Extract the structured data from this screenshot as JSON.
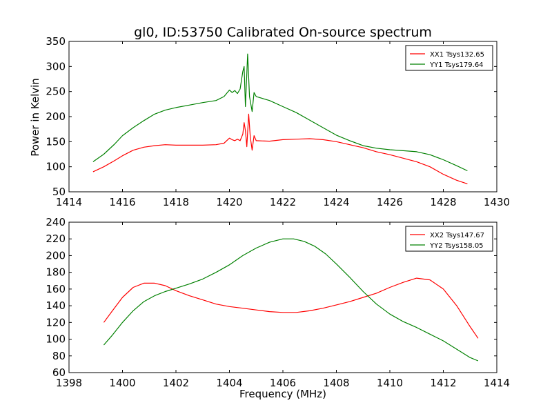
{
  "figure": {
    "title": "gl0, ID:53750 Calibrated On-source spectrum",
    "xlabel": "Frequency (MHz)",
    "ylabel_top": "Power in Kelvin"
  },
  "chart_data": [
    {
      "type": "line",
      "title": "gl0, ID:53750 Calibrated On-source spectrum",
      "xlabel": "",
      "ylabel": "Power in Kelvin",
      "xlim": [
        1414,
        1430
      ],
      "ylim": [
        50,
        350
      ],
      "xticks": [
        1414,
        1416,
        1418,
        1420,
        1422,
        1424,
        1426,
        1428,
        1430
      ],
      "yticks": [
        50,
        100,
        150,
        200,
        250,
        300,
        350
      ],
      "legend_position": "top-right",
      "grid": false,
      "series": [
        {
          "name": "XX1 Tsys132.65",
          "color": "#ff0000",
          "points": [
            [
              1414.9,
              90
            ],
            [
              1415.3,
              100
            ],
            [
              1415.7,
              112
            ],
            [
              1416.0,
              122
            ],
            [
              1416.4,
              133
            ],
            [
              1416.8,
              139
            ],
            [
              1417.2,
              142
            ],
            [
              1417.6,
              144
            ],
            [
              1418.0,
              143
            ],
            [
              1418.5,
              143
            ],
            [
              1419.0,
              143
            ],
            [
              1419.5,
              144
            ],
            [
              1419.8,
              147
            ],
            [
              1420.0,
              157
            ],
            [
              1420.1,
              154
            ],
            [
              1420.2,
              152
            ],
            [
              1420.3,
              155
            ],
            [
              1420.4,
              152
            ],
            [
              1420.5,
              165
            ],
            [
              1420.55,
              188
            ],
            [
              1420.6,
              172
            ],
            [
              1420.65,
              140
            ],
            [
              1420.72,
              205
            ],
            [
              1420.78,
              160
            ],
            [
              1420.85,
              133
            ],
            [
              1420.92,
              162
            ],
            [
              1421.0,
              152
            ],
            [
              1421.5,
              151
            ],
            [
              1422.0,
              154
            ],
            [
              1422.5,
              155
            ],
            [
              1423.0,
              156
            ],
            [
              1423.5,
              154
            ],
            [
              1424.0,
              150
            ],
            [
              1424.5,
              144
            ],
            [
              1425.0,
              138
            ],
            [
              1425.5,
              130
            ],
            [
              1426.0,
              124
            ],
            [
              1426.5,
              117
            ],
            [
              1427.0,
              110
            ],
            [
              1427.5,
              100
            ],
            [
              1428.0,
              85
            ],
            [
              1428.5,
              73
            ],
            [
              1428.9,
              66
            ]
          ]
        },
        {
          "name": "YY1 Tsys179.64",
          "color": "#008000",
          "points": [
            [
              1414.9,
              110
            ],
            [
              1415.3,
              125
            ],
            [
              1415.7,
              145
            ],
            [
              1416.0,
              162
            ],
            [
              1416.4,
              178
            ],
            [
              1416.8,
              192
            ],
            [
              1417.2,
              205
            ],
            [
              1417.6,
              213
            ],
            [
              1418.0,
              218
            ],
            [
              1418.5,
              223
            ],
            [
              1419.0,
              228
            ],
            [
              1419.5,
              232
            ],
            [
              1419.8,
              240
            ],
            [
              1420.0,
              253
            ],
            [
              1420.1,
              248
            ],
            [
              1420.2,
              252
            ],
            [
              1420.3,
              246
            ],
            [
              1420.4,
              255
            ],
            [
              1420.5,
              290
            ],
            [
              1420.55,
              300
            ],
            [
              1420.6,
              220
            ],
            [
              1420.68,
              325
            ],
            [
              1420.75,
              240
            ],
            [
              1420.85,
              210
            ],
            [
              1420.92,
              248
            ],
            [
              1421.0,
              240
            ],
            [
              1421.5,
              232
            ],
            [
              1422.0,
              220
            ],
            [
              1422.5,
              208
            ],
            [
              1423.0,
              193
            ],
            [
              1423.5,
              178
            ],
            [
              1424.0,
              163
            ],
            [
              1424.5,
              152
            ],
            [
              1425.0,
              142
            ],
            [
              1425.5,
              137
            ],
            [
              1426.0,
              134
            ],
            [
              1426.5,
              132
            ],
            [
              1427.0,
              130
            ],
            [
              1427.5,
              124
            ],
            [
              1428.0,
              114
            ],
            [
              1428.5,
              102
            ],
            [
              1428.9,
              92
            ]
          ]
        }
      ]
    },
    {
      "type": "line",
      "title": "",
      "xlabel": "Frequency (MHz)",
      "ylabel": "",
      "xlim": [
        1398,
        1414
      ],
      "ylim": [
        60,
        240
      ],
      "xticks": [
        1398,
        1400,
        1402,
        1404,
        1406,
        1408,
        1410,
        1412,
        1414
      ],
      "yticks": [
        60,
        80,
        100,
        120,
        140,
        160,
        180,
        200,
        220,
        240
      ],
      "legend_position": "top-right",
      "grid": false,
      "series": [
        {
          "name": "XX2 Tsys147.67",
          "color": "#ff0000",
          "points": [
            [
              1399.3,
              120
            ],
            [
              1399.6,
              133
            ],
            [
              1400.0,
              150
            ],
            [
              1400.4,
              162
            ],
            [
              1400.8,
              167
            ],
            [
              1401.2,
              167
            ],
            [
              1401.6,
              164
            ],
            [
              1402.0,
              158
            ],
            [
              1402.5,
              152
            ],
            [
              1403.0,
              147
            ],
            [
              1403.5,
              142
            ],
            [
              1404.0,
              139
            ],
            [
              1404.5,
              137
            ],
            [
              1405.0,
              135
            ],
            [
              1405.5,
              133
            ],
            [
              1406.0,
              132
            ],
            [
              1406.5,
              132
            ],
            [
              1407.0,
              134
            ],
            [
              1407.5,
              137
            ],
            [
              1408.0,
              141
            ],
            [
              1408.5,
              145
            ],
            [
              1409.0,
              150
            ],
            [
              1409.5,
              155
            ],
            [
              1410.0,
              162
            ],
            [
              1410.5,
              168
            ],
            [
              1411.0,
              173
            ],
            [
              1411.5,
              171
            ],
            [
              1412.0,
              160
            ],
            [
              1412.5,
              140
            ],
            [
              1413.0,
              115
            ],
            [
              1413.3,
              101
            ]
          ]
        },
        {
          "name": "YY2 Tsys158.05",
          "color": "#008000",
          "points": [
            [
              1399.3,
              93
            ],
            [
              1399.6,
              104
            ],
            [
              1400.0,
              120
            ],
            [
              1400.4,
              134
            ],
            [
              1400.8,
              145
            ],
            [
              1401.2,
              152
            ],
            [
              1401.6,
              157
            ],
            [
              1402.0,
              161
            ],
            [
              1402.5,
              166
            ],
            [
              1403.0,
              172
            ],
            [
              1403.5,
              180
            ],
            [
              1404.0,
              189
            ],
            [
              1404.5,
              200
            ],
            [
              1405.0,
              209
            ],
            [
              1405.5,
              216
            ],
            [
              1406.0,
              220
            ],
            [
              1406.4,
              220
            ],
            [
              1406.8,
              217
            ],
            [
              1407.2,
              211
            ],
            [
              1407.6,
              202
            ],
            [
              1408.0,
              190
            ],
            [
              1408.5,
              174
            ],
            [
              1409.0,
              157
            ],
            [
              1409.5,
              142
            ],
            [
              1410.0,
              130
            ],
            [
              1410.5,
              121
            ],
            [
              1411.0,
              114
            ],
            [
              1411.5,
              106
            ],
            [
              1412.0,
              98
            ],
            [
              1412.5,
              88
            ],
            [
              1413.0,
              78
            ],
            [
              1413.3,
              74
            ]
          ]
        }
      ]
    }
  ]
}
